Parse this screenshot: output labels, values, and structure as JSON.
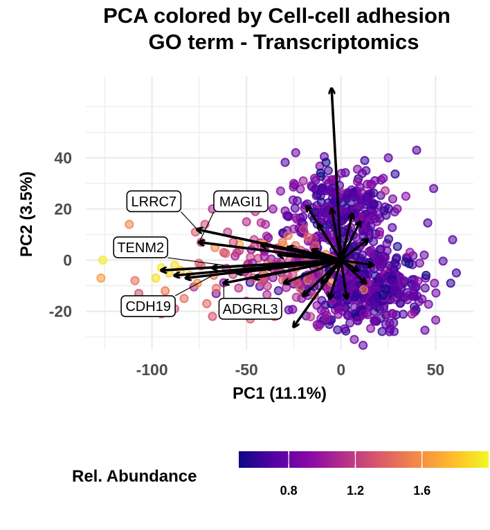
{
  "chart_data": {
    "type": "scatter",
    "title_lines": [
      "PCA colored by Cell-cell adhesion",
      "GO term - Transcriptomics"
    ],
    "xlabel": "PC1 (11.1%)",
    "ylabel": "PC2 (3.5%)",
    "xlim": [
      -135,
      70
    ],
    "ylim": [
      -35,
      72
    ],
    "x_ticks": [
      -100,
      -50,
      0,
      50
    ],
    "x_tick_labels": [
      "-100",
      "-50",
      "0",
      "50"
    ],
    "y_ticks": [
      -20,
      0,
      20,
      40
    ],
    "y_tick_labels": [
      "-20",
      "0",
      "20",
      "40"
    ],
    "grid": true,
    "point_color_scale": "plasma",
    "color_range": [
      0.5,
      2.0
    ],
    "colors": {
      "arrow": "#000000",
      "grid": "#ebebeb",
      "point_stroke_alpha": 0.8
    },
    "clusters": [
      {
        "cx": 0,
        "cy": 18,
        "sx": 14,
        "sy": 9,
        "n": 300,
        "mean_value": 0.75,
        "value_sd": 0.12
      },
      {
        "cx": 12,
        "cy": -10,
        "sx": 16,
        "sy": 8,
        "n": 420,
        "mean_value": 0.72,
        "value_sd": 0.12
      },
      {
        "cx": -35,
        "cy": -3,
        "sx": 18,
        "sy": 8,
        "n": 110,
        "mean_value": 1.2,
        "value_sd": 0.2
      }
    ],
    "extra_points": [
      {
        "x": -127,
        "y": -7,
        "v": 1.65
      },
      {
        "x": -126,
        "y": 0,
        "v": 1.95
      },
      {
        "x": -117,
        "y": 5,
        "v": 1.5
      },
      {
        "x": -112,
        "y": 14,
        "v": 1.55
      },
      {
        "x": -109,
        "y": -8,
        "v": 1.45
      },
      {
        "x": -107,
        "y": -13,
        "v": 1.3
      },
      {
        "x": -98,
        "y": -7,
        "v": 1.9
      },
      {
        "x": -95,
        "y": -3,
        "v": 1.95
      },
      {
        "x": -91,
        "y": -5,
        "v": 1.85
      },
      {
        "x": -88,
        "y": -2,
        "v": 1.9
      },
      {
        "x": -85,
        "y": -4,
        "v": 1.8
      },
      {
        "x": -80,
        "y": -6,
        "v": 1.75
      },
      {
        "x": -93,
        "y": -12,
        "v": 1.5
      },
      {
        "x": -100,
        "y": -17,
        "v": 1.4
      },
      {
        "x": -95,
        "y": -21,
        "v": 1.35
      },
      {
        "x": -88,
        "y": -19,
        "v": 1.3
      },
      {
        "x": -83,
        "y": -15,
        "v": 1.45
      },
      {
        "x": -76,
        "y": -9,
        "v": 1.6
      },
      {
        "x": -77,
        "y": 11,
        "v": 1.35
      },
      {
        "x": -74,
        "y": 7,
        "v": 1.25
      },
      {
        "x": -72,
        "y": 14,
        "v": 1.3
      },
      {
        "x": -68,
        "y": 20,
        "v": 1.1
      },
      {
        "x": -60,
        "y": 11,
        "v": 1.2
      },
      {
        "x": -62,
        "y": 3,
        "v": 1.3
      },
      {
        "x": -57,
        "y": 7,
        "v": 1.25
      },
      {
        "x": -50,
        "y": 15,
        "v": 1.1
      },
      {
        "x": -46,
        "y": 8,
        "v": 1.2
      },
      {
        "x": -40,
        "y": 14,
        "v": 1.05
      },
      {
        "x": -36,
        "y": 20,
        "v": 0.95
      },
      {
        "x": -32,
        "y": 27,
        "v": 0.9
      },
      {
        "x": -25,
        "y": 30,
        "v": 0.95
      },
      {
        "x": -20,
        "y": 31,
        "v": 1.0
      },
      {
        "x": -14,
        "y": 32,
        "v": 0.9
      },
      {
        "x": -24,
        "y": 42,
        "v": 0.8
      },
      {
        "x": 25,
        "y": 40,
        "v": 0.75
      },
      {
        "x": 40,
        "y": 43,
        "v": 0.7
      },
      {
        "x": 49,
        "y": 28,
        "v": 0.75
      },
      {
        "x": 59,
        "y": 8,
        "v": 0.7
      },
      {
        "x": 61,
        "y": -5,
        "v": 0.65
      },
      {
        "x": 58,
        "y": -9,
        "v": 0.6
      },
      {
        "x": 44,
        "y": 2,
        "v": 0.8
      },
      {
        "x": 38,
        "y": -14,
        "v": 0.75
      },
      {
        "x": -12,
        "y": -26,
        "v": 1.0
      },
      {
        "x": 7,
        "y": -31,
        "v": 0.85
      },
      {
        "x": 26,
        "y": -27,
        "v": 0.8
      },
      {
        "x": -45,
        "y": -20,
        "v": 1.3
      },
      {
        "x": -48,
        "y": -23,
        "v": 1.35
      },
      {
        "x": -58,
        "y": -20,
        "v": 1.25
      },
      {
        "x": -68,
        "y": -22,
        "v": 1.3
      },
      {
        "x": -71,
        "y": -17,
        "v": 1.4
      },
      {
        "x": -66,
        "y": -11,
        "v": 1.45
      }
    ],
    "arrows": [
      {
        "x": -5,
        "y": 67
      },
      {
        "x": -95,
        "y": -4
      },
      {
        "x": -88,
        "y": -6
      },
      {
        "x": -82,
        "y": -7
      },
      {
        "x": -76,
        "y": 12
      },
      {
        "x": -75,
        "y": 7
      },
      {
        "x": -62,
        "y": -9
      },
      {
        "x": -68,
        "y": -3
      },
      {
        "x": -55,
        "y": -5
      },
      {
        "x": -46,
        "y": -7
      },
      {
        "x": -40,
        "y": -3
      },
      {
        "x": -33,
        "y": 2
      },
      {
        "x": -30,
        "y": -9
      },
      {
        "x": -28,
        "y": 5
      },
      {
        "x": -25,
        "y": -26
      },
      {
        "x": -18,
        "y": 21
      },
      {
        "x": -12,
        "y": 14
      },
      {
        "x": -10,
        "y": -9
      },
      {
        "x": -20,
        "y": -14
      },
      {
        "x": -5,
        "y": 20
      },
      {
        "x": 6,
        "y": 18
      },
      {
        "x": 10,
        "y": 15
      },
      {
        "x": 14,
        "y": 8
      },
      {
        "x": 17,
        "y": -2
      },
      {
        "x": 13,
        "y": -9
      },
      {
        "x": 9,
        "y": -4
      },
      {
        "x": -15,
        "y": 4
      },
      {
        "x": -42,
        "y": 6
      },
      {
        "x": 3,
        "y": -15
      },
      {
        "x": -6,
        "y": -15
      }
    ],
    "gene_labels": [
      {
        "text": "LRRC7",
        "box_x": -99,
        "box_y": 23,
        "arrow_x": -76,
        "arrow_y": 12
      },
      {
        "text": "MAGI1",
        "box_x": -53,
        "box_y": 23,
        "arrow_x": -75,
        "arrow_y": 7
      },
      {
        "text": "TENM2",
        "box_x": -106,
        "box_y": 5,
        "arrow_x": -62,
        "arrow_y": -2
      },
      {
        "text": "CDH19",
        "box_x": -102,
        "box_y": -18,
        "arrow_x": -68,
        "arrow_y": -6
      },
      {
        "text": "ADGRL3",
        "box_x": -48,
        "box_y": -19,
        "arrow_x": -62,
        "arrow_y": -9
      }
    ],
    "legend": {
      "title": "Rel. Abundance",
      "placement": "bottom",
      "type": "colorbar",
      "ticks": [
        0.8,
        1.2,
        1.6
      ],
      "tick_labels": [
        "0.8",
        "1.2",
        "1.6"
      ]
    }
  }
}
